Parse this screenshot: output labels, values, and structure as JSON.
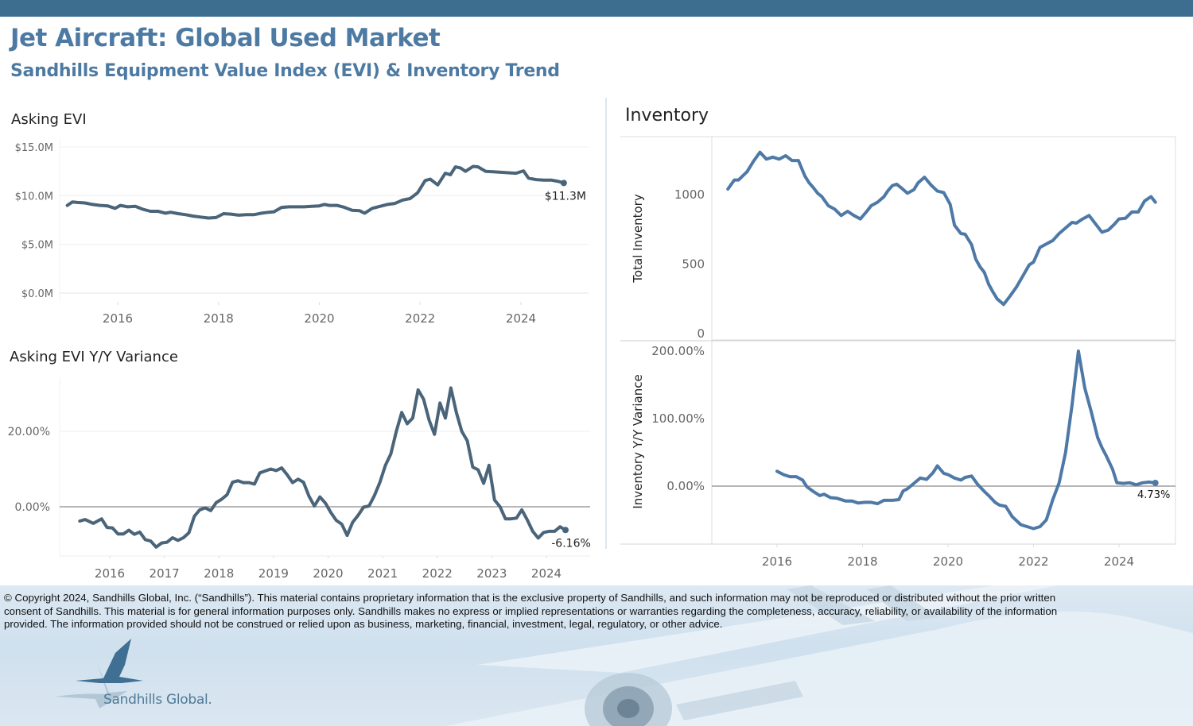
{
  "header": {
    "title": "Jet Aircraft:  Global Used Market",
    "subtitle": "Sandhills Equipment Value Index (EVI) & Inventory Trend"
  },
  "colors": {
    "top_bar": "#3d6e8f",
    "title": "#4d7aa3",
    "evi_line": "#4a6479",
    "inventory_line": "#4e79a7",
    "zero_line": "#8a8a8a"
  },
  "panels": {
    "asking_evi_title": "Asking EVI",
    "evi_yoy_title": "Asking EVI Y/Y Variance",
    "inventory_title": "Inventory"
  },
  "chart_data": [
    {
      "id": "asking_evi",
      "type": "line",
      "title": "Asking EVI",
      "xlabel": "",
      "ylabel": "",
      "x_ticks": [
        "2016",
        "2018",
        "2020",
        "2022",
        "2024"
      ],
      "y_ticks": [
        "$0.0M",
        "$5.0M",
        "$10.0M",
        "$15.0M"
      ],
      "ylim": [
        0,
        15.5
      ],
      "xlim": [
        2014.9,
        2025.5
      ],
      "grid": true,
      "end_label": "$11.3M",
      "series": [
        {
          "name": "Asking EVI ($M)",
          "x": [
            2015.0,
            2015.1,
            2015.2,
            2015.35,
            2015.5,
            2015.65,
            2015.8,
            2015.95,
            2016.05,
            2016.2,
            2016.35,
            2016.5,
            2016.65,
            2016.8,
            2016.95,
            2017.05,
            2017.2,
            2017.35,
            2017.5,
            2017.65,
            2017.8,
            2017.95,
            2018.1,
            2018.25,
            2018.4,
            2018.55,
            2018.7,
            2018.85,
            2019.0,
            2019.1,
            2019.25,
            2019.4,
            2019.55,
            2019.7,
            2019.85,
            2020.0,
            2020.1,
            2020.2,
            2020.35,
            2020.5,
            2020.65,
            2020.8,
            2020.9,
            2021.05,
            2021.2,
            2021.35,
            2021.5,
            2021.65,
            2021.8,
            2021.95,
            2022.1,
            2022.2,
            2022.35,
            2022.5,
            2022.6,
            2022.7,
            2022.8,
            2022.9,
            2023.05,
            2023.15,
            2023.3,
            2023.45,
            2023.6,
            2023.75,
            2023.9,
            2024.05,
            2024.15,
            2024.3,
            2024.45,
            2024.6,
            2024.75,
            2024.85
          ],
          "values": [
            9.0,
            9.35,
            9.3,
            9.25,
            9.1,
            9.0,
            8.95,
            8.7,
            9.0,
            8.85,
            8.9,
            8.6,
            8.4,
            8.4,
            8.2,
            8.3,
            8.15,
            8.05,
            7.9,
            7.8,
            7.7,
            7.75,
            8.15,
            8.1,
            8.0,
            8.05,
            8.05,
            8.2,
            8.3,
            8.35,
            8.8,
            8.85,
            8.85,
            8.85,
            8.9,
            8.95,
            9.1,
            9.0,
            9.0,
            8.8,
            8.5,
            8.45,
            8.2,
            8.7,
            8.9,
            9.1,
            9.2,
            9.55,
            9.7,
            10.3,
            11.55,
            11.7,
            11.1,
            12.3,
            12.15,
            12.95,
            12.85,
            12.5,
            13.0,
            12.95,
            12.5,
            12.45,
            12.4,
            12.35,
            12.3,
            12.55,
            11.8,
            11.65,
            11.6,
            11.6,
            11.45,
            11.3
          ]
        }
      ]
    },
    {
      "id": "asking_evi_yoy",
      "type": "line",
      "title": "Asking EVI Y/Y Variance",
      "xlabel": "",
      "ylabel": "",
      "x_ticks": [
        "2016",
        "2017",
        "2018",
        "2019",
        "2020",
        "2021",
        "2022",
        "2023",
        "2024"
      ],
      "y_ticks": [
        "0.00%",
        "20.00%"
      ],
      "ylim": [
        -12.5,
        34.5
      ],
      "xlim": [
        2015.1,
        2024.8
      ],
      "grid": true,
      "zero_line": true,
      "end_label": "-6.16%",
      "series": [
        {
          "name": "Asking EVI Y/Y (%)",
          "x": [
            2015.45,
            2015.55,
            2015.7,
            2015.85,
            2015.95,
            2016.05,
            2016.15,
            2016.25,
            2016.35,
            2016.45,
            2016.55,
            2016.65,
            2016.75,
            2016.85,
            2016.95,
            2017.05,
            2017.15,
            2017.25,
            2017.35,
            2017.45,
            2017.55,
            2017.65,
            2017.75,
            2017.85,
            2017.95,
            2018.05,
            2018.15,
            2018.25,
            2018.35,
            2018.45,
            2018.55,
            2018.65,
            2018.75,
            2018.85,
            2018.95,
            2019.05,
            2019.15,
            2019.25,
            2019.35,
            2019.45,
            2019.55,
            2019.65,
            2019.75,
            2019.85,
            2019.95,
            2020.05,
            2020.15,
            2020.25,
            2020.35,
            2020.45,
            2020.55,
            2020.65,
            2020.75,
            2020.85,
            2020.95,
            2021.05,
            2021.15,
            2021.25,
            2021.35,
            2021.45,
            2021.55,
            2021.65,
            2021.75,
            2021.85,
            2021.95,
            2022.05,
            2022.15,
            2022.25,
            2022.35,
            2022.45,
            2022.55,
            2022.65,
            2022.75,
            2022.85,
            2022.95,
            2023.05,
            2023.15,
            2023.25,
            2023.35,
            2023.45,
            2023.55,
            2023.65,
            2023.75,
            2023.85,
            2023.95,
            2024.05,
            2024.15,
            2024.25,
            2024.35
          ],
          "values": [
            -3.8,
            -3.4,
            -4.4,
            -3.2,
            -5.5,
            -5.6,
            -7.2,
            -7.2,
            -6.2,
            -7.3,
            -6.7,
            -8.7,
            -9.1,
            -10.7,
            -9.6,
            -9.4,
            -8.2,
            -8.9,
            -8.2,
            -6.9,
            -2.5,
            -0.8,
            -0.3,
            -1.0,
            1.1,
            2.0,
            3.2,
            6.5,
            6.9,
            6.4,
            6.4,
            6.0,
            9.0,
            9.5,
            10.0,
            9.6,
            10.3,
            8.5,
            6.4,
            7.3,
            6.5,
            2.8,
            0.2,
            2.6,
            1.0,
            -1.5,
            -3.6,
            -4.6,
            -7.6,
            -4.1,
            -2.3,
            -0.1,
            0.2,
            3.0,
            6.5,
            11.0,
            14.0,
            20.0,
            25.0,
            22.0,
            23.5,
            31.0,
            28.5,
            23.0,
            19.2,
            27.5,
            23.5,
            31.5,
            25.0,
            20.0,
            17.5,
            10.5,
            9.8,
            6.2,
            11.0,
            1.8,
            0.0,
            -3.2,
            -3.2,
            -3.0,
            -0.8,
            -3.5,
            -6.5,
            -8.3,
            -6.8,
            -6.5,
            -6.5,
            -5.3,
            -6.16
          ]
        }
      ]
    },
    {
      "id": "total_inventory",
      "type": "line",
      "title": "Inventory",
      "xlabel": "",
      "ylabel": "Total Inventory",
      "x_ticks": [],
      "y_ticks": [
        "0",
        "500",
        "1000"
      ],
      "ylim": [
        0,
        1420
      ],
      "xlim": [
        2014.3,
        2025.3
      ],
      "grid": false,
      "series": [
        {
          "name": "Total Inventory",
          "x": [
            2014.85,
            2015.0,
            2015.1,
            2015.3,
            2015.45,
            2015.6,
            2015.75,
            2015.9,
            2016.05,
            2016.2,
            2016.35,
            2016.5,
            2016.65,
            2016.75,
            2016.85,
            2016.95,
            2017.05,
            2017.2,
            2017.35,
            2017.5,
            2017.65,
            2017.8,
            2017.95,
            2018.1,
            2018.2,
            2018.35,
            2018.5,
            2018.6,
            2018.7,
            2018.8,
            2018.9,
            2019.05,
            2019.2,
            2019.3,
            2019.45,
            2019.6,
            2019.75,
            2019.9,
            2020.05,
            2020.15,
            2020.3,
            2020.4,
            2020.55,
            2020.65,
            2020.75,
            2020.85,
            2020.95,
            2021.05,
            2021.15,
            2021.3,
            2021.45,
            2021.6,
            2021.75,
            2021.9,
            2022.0,
            2022.15,
            2022.3,
            2022.45,
            2022.6,
            2022.75,
            2022.9,
            2023.0,
            2023.15,
            2023.3,
            2023.45,
            2023.6,
            2023.75,
            2023.9,
            2024.0,
            2024.15,
            2024.3,
            2024.45,
            2024.6,
            2024.75,
            2024.85
          ],
          "values": [
            1040,
            1105,
            1105,
            1165,
            1240,
            1305,
            1255,
            1270,
            1255,
            1280,
            1245,
            1245,
            1135,
            1085,
            1050,
            1010,
            985,
            920,
            895,
            850,
            880,
            850,
            825,
            880,
            920,
            945,
            985,
            1030,
            1065,
            1075,
            1050,
            1010,
            1035,
            1085,
            1125,
            1070,
            1025,
            1015,
            930,
            780,
            720,
            715,
            640,
            535,
            480,
            440,
            355,
            300,
            250,
            210,
            270,
            335,
            415,
            495,
            515,
            620,
            645,
            670,
            720,
            760,
            800,
            795,
            825,
            850,
            790,
            730,
            745,
            790,
            825,
            830,
            875,
            875,
            955,
            985,
            945
          ]
        }
      ]
    },
    {
      "id": "inventory_yoy",
      "type": "line",
      "title": "",
      "xlabel": "",
      "ylabel": "Inventory  Y/Y Variance",
      "x_ticks": [
        "2016",
        "2018",
        "2020",
        "2022",
        "2024"
      ],
      "y_ticks": [
        "0.00%",
        "100.00%",
        "200.00%"
      ],
      "ylim": [
        -85,
        215
      ],
      "xlim": [
        2014.3,
        2025.3
      ],
      "grid": false,
      "zero_line": true,
      "end_label": "4.73%",
      "series": [
        {
          "name": "Inventory Y/Y (%)",
          "x": [
            2016.0,
            2016.15,
            2016.3,
            2016.45,
            2016.6,
            2016.7,
            2016.85,
            2017.0,
            2017.1,
            2017.25,
            2017.4,
            2017.6,
            2017.75,
            2017.9,
            2018.05,
            2018.2,
            2018.35,
            2018.5,
            2018.7,
            2018.85,
            2018.95,
            2019.05,
            2019.2,
            2019.35,
            2019.5,
            2019.65,
            2019.75,
            2019.9,
            2020.0,
            2020.15,
            2020.3,
            2020.4,
            2020.55,
            2020.7,
            2020.85,
            2020.95,
            2021.1,
            2021.2,
            2021.35,
            2021.5,
            2021.7,
            2021.85,
            2022.0,
            2022.15,
            2022.3,
            2022.45,
            2022.6,
            2022.75,
            2022.9,
            2023.05,
            2023.2,
            2023.35,
            2023.5,
            2023.6,
            2023.7,
            2023.85,
            2023.95,
            2024.1,
            2024.25,
            2024.4,
            2024.55,
            2024.7,
            2024.85
          ],
          "values": [
            22,
            17,
            14,
            14,
            9,
            -1,
            -8,
            -14,
            -12,
            -17,
            -18,
            -22,
            -22,
            -25,
            -24,
            -24,
            -26,
            -21,
            -21,
            -20,
            -7,
            -4,
            4,
            12,
            10,
            20,
            30,
            19,
            17,
            12,
            9,
            13,
            15,
            2,
            -8,
            -14,
            -24,
            -28,
            -30,
            -45,
            -57,
            -60,
            -63,
            -60,
            -50,
            -20,
            5,
            50,
            120,
            200,
            145,
            110,
            72,
            57,
            45,
            25,
            5,
            4,
            5,
            2,
            5,
            6,
            4.73
          ]
        }
      ]
    }
  ]
}
